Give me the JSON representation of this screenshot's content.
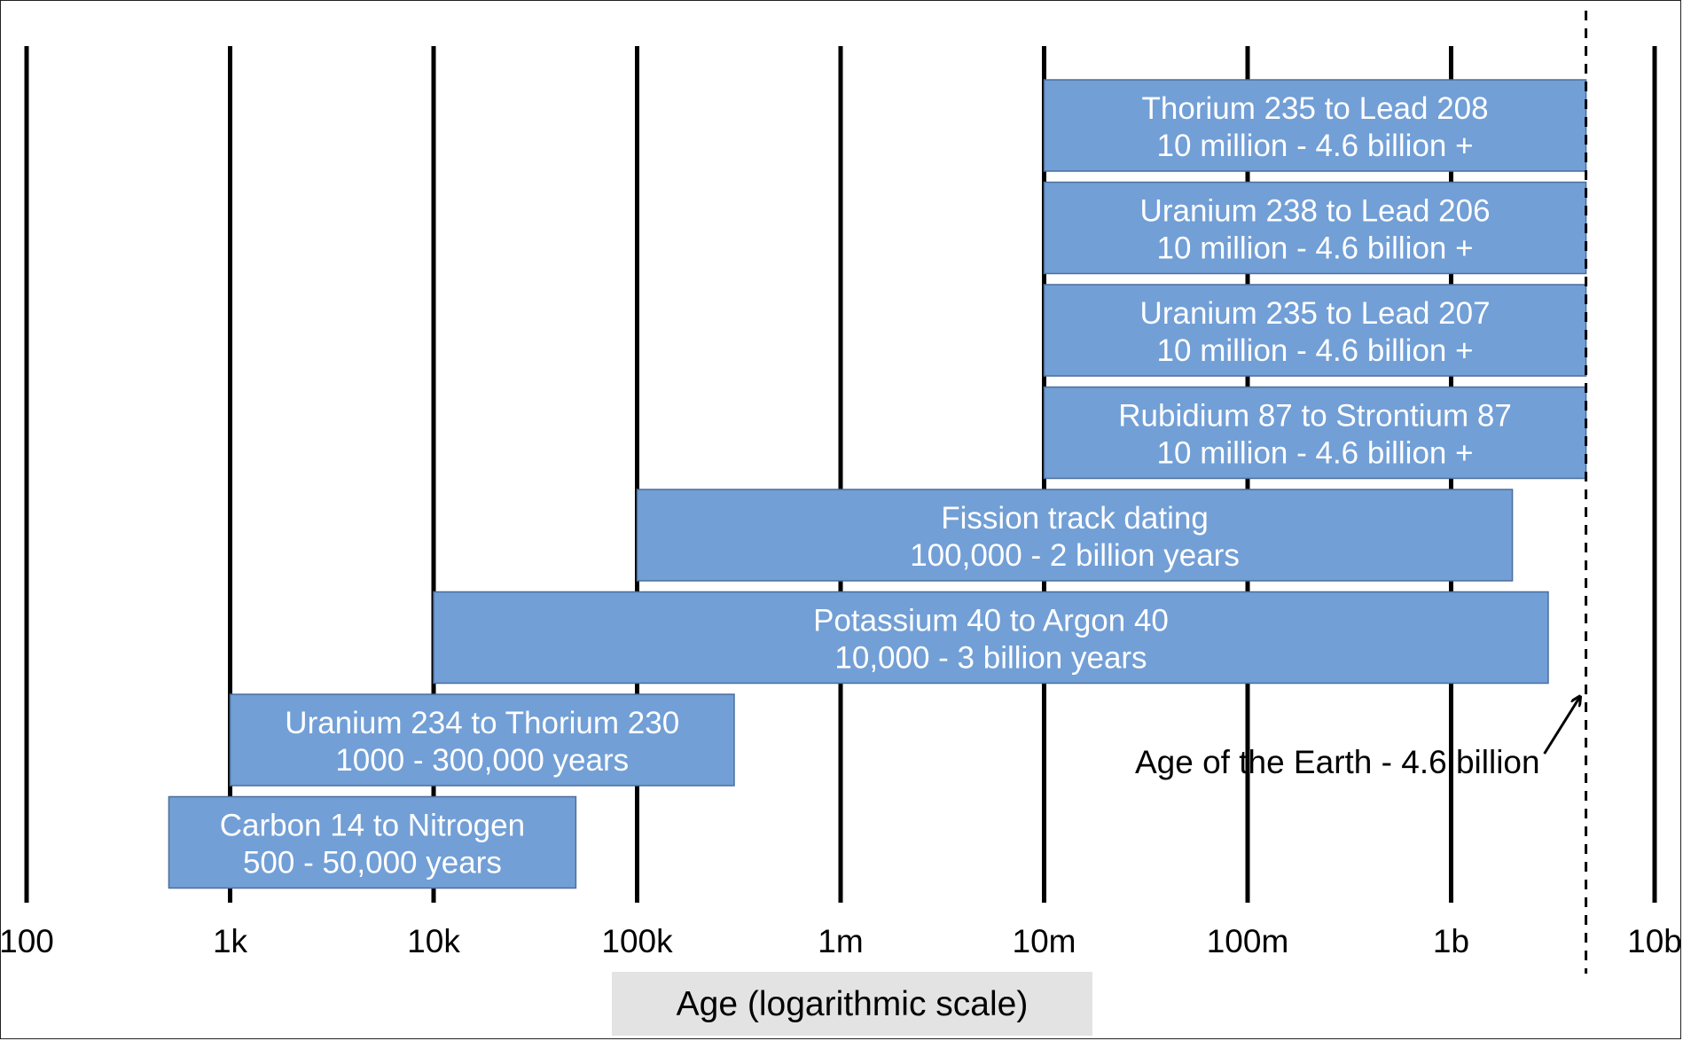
{
  "chart_data": {
    "type": "range-bar",
    "xlabel": "Age (logarithmic scale)",
    "x_scale": "log",
    "xlim": [
      100,
      10000000000
    ],
    "ticks": [
      {
        "value": 100,
        "label": "100"
      },
      {
        "value": 1000,
        "label": "1k"
      },
      {
        "value": 10000,
        "label": "10k"
      },
      {
        "value": 100000,
        "label": "100k"
      },
      {
        "value": 1000000,
        "label": "1m"
      },
      {
        "value": 10000000,
        "label": "10m"
      },
      {
        "value": 100000000,
        "label": "100m"
      },
      {
        "value": 1000000000,
        "label": "1b"
      },
      {
        "value": 10000000000,
        "label": "10b"
      }
    ],
    "series": [
      {
        "name": "Thorium 235 to Lead 208",
        "range_label": "10 million - 4.6 billion +",
        "start": 10000000,
        "end": 4600000000
      },
      {
        "name": "Uranium 238 to Lead 206",
        "range_label": "10 million - 4.6 billion +",
        "start": 10000000,
        "end": 4600000000
      },
      {
        "name": "Uranium 235 to Lead 207",
        "range_label": "10 million - 4.6 billion +",
        "start": 10000000,
        "end": 4600000000
      },
      {
        "name": "Rubidium 87 to Strontium 87",
        "range_label": "10 million - 4.6 billion +",
        "start": 10000000,
        "end": 4600000000
      },
      {
        "name": "Fission track dating",
        "range_label": "100,000 - 2 billion years",
        "start": 100000,
        "end": 2000000000
      },
      {
        "name": "Potassium 40 to Argon 40",
        "range_label": "10,000 - 3 billion years",
        "start": 10000,
        "end": 3000000000
      },
      {
        "name": "Uranium 234 to Thorium 230",
        "range_label": "1000 - 300,000 years",
        "start": 1000,
        "end": 300000
      },
      {
        "name": "Carbon 14 to Nitrogen",
        "range_label": "500 - 50,000 years",
        "start": 500,
        "end": 50000
      }
    ],
    "reference_line": {
      "value": 4600000000,
      "label": "Age of the Earth - 4.6 billion",
      "style": "dashed"
    },
    "colors": {
      "bar_fill": "#729fd6",
      "bar_stroke": "#4a6f9c",
      "bar_text": "#ffffff",
      "gridline": "#000000",
      "xlabel_box": "#e3e3e3"
    }
  }
}
